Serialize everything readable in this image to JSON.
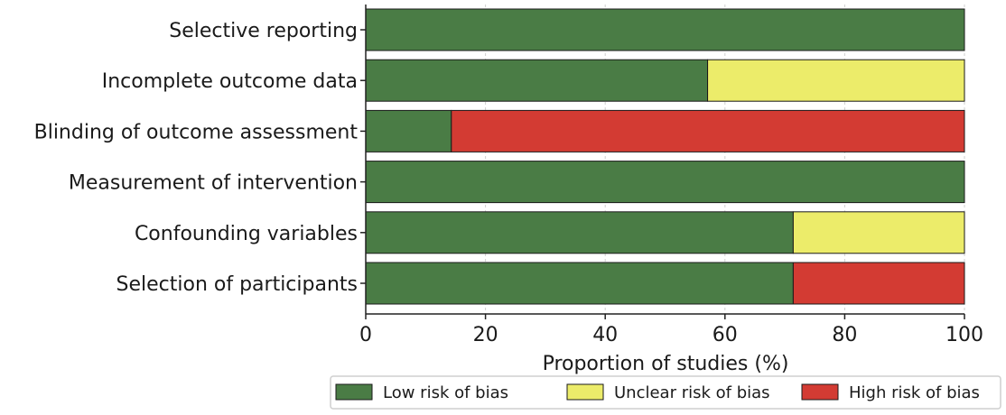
{
  "chart_data": {
    "type": "bar",
    "orientation": "horizontal",
    "stacked": true,
    "categories": [
      "Selective reporting",
      "Incomplete outcome data",
      "Blinding of outcome assessment",
      "Measurement of intervention",
      "Confounding variables",
      "Selection of participants"
    ],
    "series": [
      {
        "name": "Low risk of bias",
        "color": "#4a7c45",
        "values": [
          100,
          57.1,
          14.3,
          100,
          71.4,
          71.4
        ]
      },
      {
        "name": "Unclear risk of bias",
        "color": "#ecec6a",
        "values": [
          0,
          42.9,
          0,
          0,
          28.6,
          0
        ]
      },
      {
        "name": "High risk of bias",
        "color": "#d33b33",
        "values": [
          0,
          0,
          85.7,
          0,
          0,
          28.6
        ]
      }
    ],
    "xlabel": "Proportion of studies (%)",
    "ylabel": "",
    "xlim": [
      0,
      100
    ],
    "xticks": [
      0,
      20,
      40,
      60,
      80,
      100
    ],
    "grid": true,
    "legend_position": "bottom-right"
  }
}
